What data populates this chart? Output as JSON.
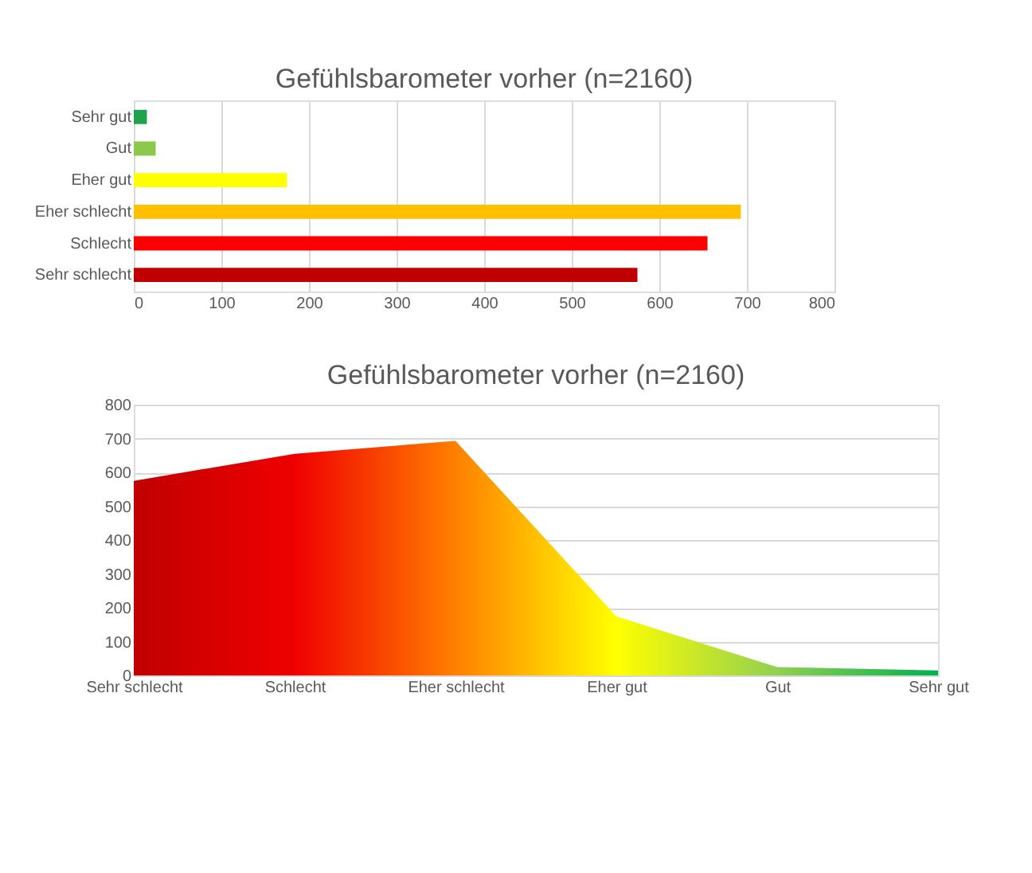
{
  "chart_data": [
    {
      "type": "bar",
      "orientation": "horizontal",
      "title": "Gefühlsbarometer vorher (n=2160)",
      "categories": [
        "Sehr gut",
        "Gut",
        "Eher gut",
        "Eher schlecht",
        "Schlecht",
        "Sehr schlecht"
      ],
      "values": [
        15,
        25,
        175,
        693,
        655,
        575
      ],
      "colors": [
        "#1fa34a",
        "#8cc84b",
        "#ffff00",
        "#ffc000",
        "#ff0000",
        "#c00000"
      ],
      "xlim": [
        0,
        800
      ],
      "xticks": [
        0,
        100,
        200,
        300,
        400,
        500,
        600,
        700,
        800
      ],
      "grid": "x"
    },
    {
      "type": "area",
      "title": "Gefühlsbarometer vorher (n=2160)",
      "categories": [
        "Sehr schlecht",
        "Schlecht",
        "Eher schlecht",
        "Eher gut",
        "Gut",
        "Sehr gut"
      ],
      "values": [
        575,
        655,
        693,
        175,
        25,
        15
      ],
      "colors": [
        "#c00000",
        "#f00000",
        "#ff8000",
        "#ffff00",
        "#92d050",
        "#00b050"
      ],
      "ylim": [
        0,
        800
      ],
      "yticks": [
        0,
        100,
        200,
        300,
        400,
        500,
        600,
        700,
        800
      ],
      "grid": "y"
    }
  ]
}
